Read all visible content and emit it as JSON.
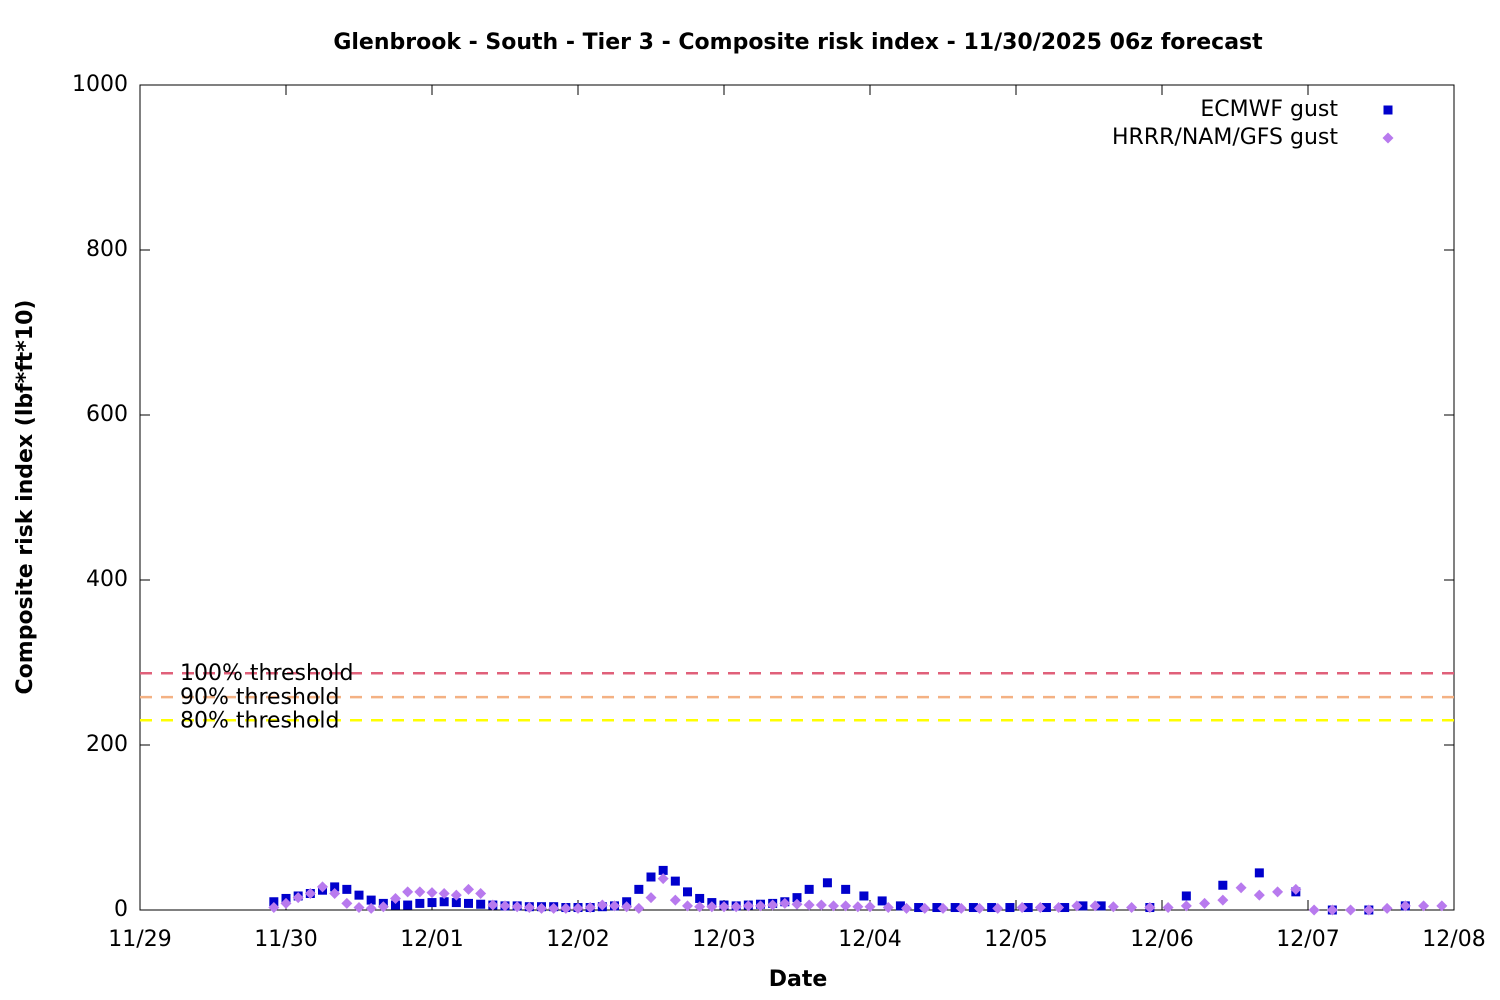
{
  "chart_data": {
    "type": "scatter",
    "title": "Glenbrook - South - Tier 3 - Composite risk index - 11/30/2025 06z forecast",
    "xlabel": "Date",
    "ylabel": "Composite risk index (lbf*ft*10)",
    "xlim": [
      0,
      216
    ],
    "xticks": [
      {
        "value": 0,
        "label": "11/29"
      },
      {
        "value": 24,
        "label": "11/30"
      },
      {
        "value": 48,
        "label": "12/01"
      },
      {
        "value": 72,
        "label": "12/02"
      },
      {
        "value": 96,
        "label": "12/03"
      },
      {
        "value": 120,
        "label": "12/04"
      },
      {
        "value": 144,
        "label": "12/05"
      },
      {
        "value": 168,
        "label": "12/06"
      },
      {
        "value": 192,
        "label": "12/07"
      },
      {
        "value": 216,
        "label": "12/08"
      }
    ],
    "ylim": [
      0,
      1000
    ],
    "yticks": [
      0,
      200,
      400,
      600,
      800,
      1000
    ],
    "legend": "top right",
    "grid": false,
    "thresholds": [
      {
        "label": "100% threshold",
        "value": 287,
        "color": "#e0607a"
      },
      {
        "label": "90% threshold",
        "value": 258,
        "color": "#f4b183"
      },
      {
        "label": "80% threshold",
        "value": 230,
        "color": "#ffff00"
      }
    ],
    "series": [
      {
        "name": "ECMWF gust",
        "color": "#0000cc",
        "marker": "square",
        "x": [
          22,
          24,
          26,
          28,
          30,
          32,
          34,
          36,
          38,
          40,
          42,
          44,
          46,
          48,
          50,
          52,
          54,
          56,
          58,
          60,
          62,
          64,
          66,
          68,
          70,
          72,
          74,
          76,
          78,
          80,
          82,
          84,
          86,
          88,
          90,
          92,
          94,
          96,
          98,
          100,
          102,
          104,
          106,
          108,
          110,
          113,
          116,
          119,
          122,
          125,
          128,
          131,
          134,
          137,
          140,
          143,
          146,
          149,
          152,
          155,
          158,
          166,
          172,
          178,
          184,
          190,
          196,
          202,
          208
        ],
        "values": [
          10,
          14,
          17,
          20,
          24,
          28,
          25,
          18,
          12,
          8,
          6,
          6,
          8,
          9,
          10,
          9,
          8,
          7,
          6,
          5,
          5,
          4,
          4,
          4,
          3,
          3,
          3,
          4,
          5,
          10,
          25,
          40,
          48,
          35,
          22,
          14,
          9,
          6,
          5,
          6,
          7,
          8,
          10,
          15,
          25,
          33,
          25,
          17,
          11,
          5,
          3,
          3,
          3,
          3,
          3,
          3,
          3,
          3,
          3,
          5,
          5,
          3,
          17,
          30,
          45,
          22,
          0,
          0,
          5
        ]
      },
      {
        "name": "HRRR/NAM/GFS gust",
        "color": "#b87aee",
        "marker": "diamond",
        "x": [
          22,
          24,
          26,
          28,
          30,
          32,
          34,
          36,
          38,
          40,
          42,
          44,
          46,
          48,
          50,
          52,
          54,
          56,
          58,
          60,
          62,
          64,
          66,
          68,
          70,
          72,
          74,
          76,
          78,
          80,
          82,
          84,
          86,
          88,
          90,
          92,
          94,
          96,
          98,
          100,
          102,
          104,
          106,
          108,
          110,
          112,
          114,
          116,
          118,
          120,
          123,
          126,
          129,
          132,
          135,
          138,
          141,
          145,
          148,
          151,
          154,
          157,
          160,
          163,
          166,
          169,
          172,
          175,
          178,
          181,
          184,
          187,
          190,
          193,
          196,
          199,
          202,
          205,
          208,
          211,
          214
        ],
        "values": [
          3,
          8,
          15,
          20,
          28,
          20,
          8,
          3,
          2,
          4,
          14,
          22,
          22,
          21,
          20,
          18,
          25,
          20,
          6,
          5,
          4,
          3,
          2,
          2,
          2,
          2,
          3,
          6,
          5,
          4,
          2,
          15,
          38,
          12,
          5,
          4,
          4,
          4,
          4,
          5,
          5,
          6,
          8,
          7,
          6,
          6,
          5,
          5,
          4,
          4,
          3,
          2,
          2,
          2,
          2,
          2,
          2,
          3,
          3,
          3,
          5,
          5,
          4,
          3,
          3,
          3,
          5,
          8,
          12,
          27,
          18,
          22,
          25,
          0,
          0,
          0,
          0,
          2,
          5,
          5,
          5
        ]
      }
    ]
  }
}
